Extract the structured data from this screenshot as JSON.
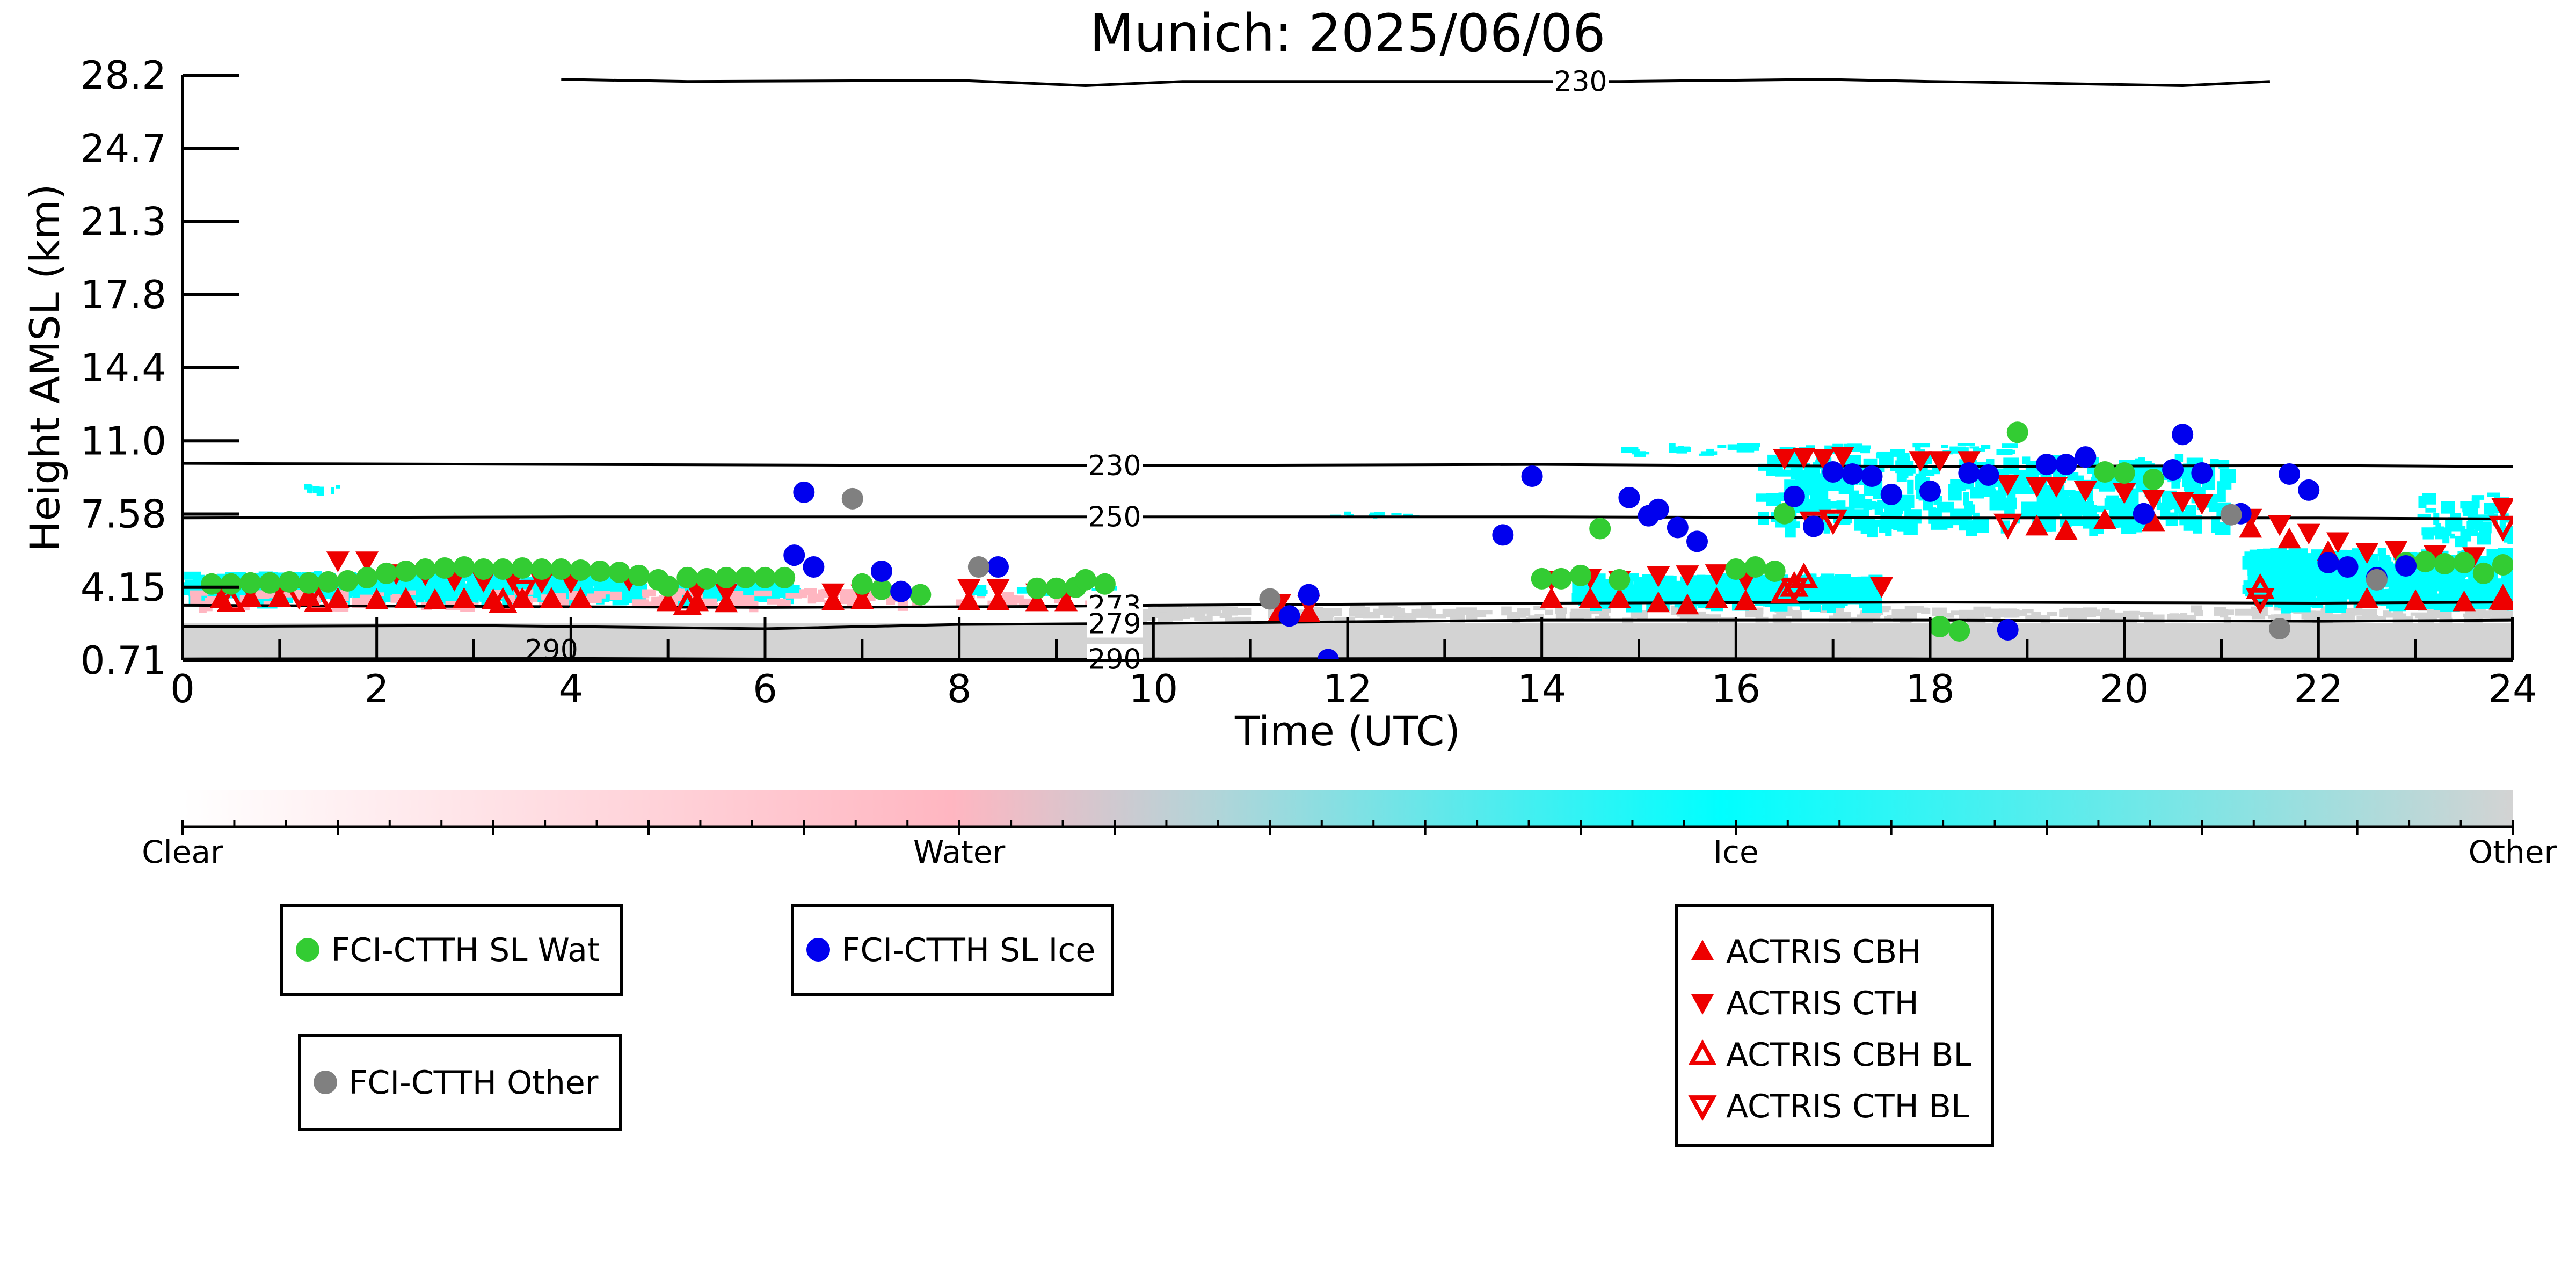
{
  "chart_data": {
    "type": "scatter",
    "title": "Munich: 2025/06/06",
    "xlabel": "Time (UTC)",
    "ylabel": "Height AMSL (km)",
    "xlim": [
      0,
      24
    ],
    "x_ticks": [
      "0",
      "2",
      "4",
      "6",
      "8",
      "10",
      "12",
      "14",
      "16",
      "18",
      "20",
      "22",
      "24"
    ],
    "y_ticks": [
      "0.71",
      "4.15",
      "7.58",
      "11.0",
      "14.4",
      "17.8",
      "21.3",
      "24.7",
      "28.2"
    ],
    "y_scale": "categorical-equal-spacing",
    "grid": false,
    "background_field": "cloud phase (colorbar)",
    "colors": {
      "water_point": "#33cc33",
      "ice_point": "#0000ee",
      "other_point": "#808080",
      "actris": "#ee0000",
      "ice_field": "#00ffff",
      "water_field": "#ffb6c1",
      "other_field": "#d3d3d3"
    },
    "contours": [
      {
        "label": "230",
        "label_x": 9.6,
        "points": [
          [
            0,
            9.95
          ],
          [
            4,
            9.9
          ],
          [
            8,
            9.85
          ],
          [
            10,
            9.85
          ],
          [
            14,
            9.9
          ],
          [
            18,
            9.8
          ],
          [
            22,
            9.85
          ],
          [
            24,
            9.8
          ]
        ]
      },
      {
        "label": "250",
        "label_x": 9.6,
        "points": [
          [
            0,
            7.4
          ],
          [
            4,
            7.45
          ],
          [
            8,
            7.45
          ],
          [
            10,
            7.45
          ],
          [
            14,
            7.45
          ],
          [
            18,
            7.4
          ],
          [
            22,
            7.4
          ],
          [
            24,
            7.35
          ]
        ]
      },
      {
        "label": "273",
        "label_x": 9.6,
        "points": [
          [
            0,
            3.3
          ],
          [
            3,
            3.25
          ],
          [
            6,
            3.2
          ],
          [
            9,
            3.25
          ],
          [
            10,
            3.3
          ],
          [
            14,
            3.4
          ],
          [
            18,
            3.45
          ],
          [
            22,
            3.4
          ],
          [
            24,
            3.45
          ]
        ]
      },
      {
        "label": "279",
        "label_x": 9.6,
        "points": [
          [
            0,
            2.3
          ],
          [
            3,
            2.35
          ],
          [
            6,
            2.2
          ],
          [
            8,
            2.4
          ],
          [
            10,
            2.45
          ],
          [
            14,
            2.6
          ],
          [
            18,
            2.6
          ],
          [
            22,
            2.55
          ],
          [
            24,
            2.6
          ]
        ]
      },
      {
        "label": "290",
        "label_x": 9.6,
        "points": [
          [
            0,
            0.78
          ],
          [
            4,
            0.8
          ],
          [
            8,
            0.75
          ],
          [
            10,
            0.78
          ],
          [
            14,
            0.8
          ],
          [
            18,
            0.78
          ],
          [
            24,
            0.78
          ]
        ]
      },
      {
        "label": "230",
        "label_x": 14.4,
        "points": [
          [
            3.9,
            28.0
          ],
          [
            5.2,
            27.9
          ],
          [
            8,
            27.95
          ],
          [
            9.3,
            27.7
          ],
          [
            10.3,
            27.9
          ],
          [
            14.8,
            27.9
          ],
          [
            16.9,
            28.0
          ],
          [
            18,
            27.9
          ],
          [
            18.7,
            27.85
          ],
          [
            20.6,
            27.7
          ],
          [
            21.5,
            27.9
          ]
        ]
      }
    ],
    "contour_labels_misc": [
      "290"
    ],
    "series": [
      {
        "name": "FCI-CTTH SL Wat",
        "marker": "circle",
        "color": "#33cc33",
        "points": [
          [
            0.3,
            4.3
          ],
          [
            0.5,
            4.3
          ],
          [
            0.7,
            4.35
          ],
          [
            0.9,
            4.35
          ],
          [
            1.1,
            4.4
          ],
          [
            1.3,
            4.35
          ],
          [
            1.5,
            4.4
          ],
          [
            1.7,
            4.45
          ],
          [
            1.9,
            4.6
          ],
          [
            2.1,
            4.8
          ],
          [
            2.3,
            4.9
          ],
          [
            2.5,
            5.0
          ],
          [
            2.7,
            5.05
          ],
          [
            2.9,
            5.1
          ],
          [
            3.1,
            5.0
          ],
          [
            3.3,
            5.0
          ],
          [
            3.5,
            5.05
          ],
          [
            3.7,
            5.0
          ],
          [
            3.9,
            5.0
          ],
          [
            4.1,
            4.95
          ],
          [
            4.3,
            4.9
          ],
          [
            4.5,
            4.85
          ],
          [
            4.7,
            4.7
          ],
          [
            4.9,
            4.5
          ],
          [
            5.0,
            4.2
          ],
          [
            5.2,
            4.6
          ],
          [
            5.4,
            4.55
          ],
          [
            5.6,
            4.6
          ],
          [
            5.8,
            4.6
          ],
          [
            6.0,
            4.6
          ],
          [
            6.2,
            4.6
          ],
          [
            7.0,
            4.3
          ],
          [
            7.2,
            4.05
          ],
          [
            7.6,
            3.8
          ],
          [
            8.8,
            4.1
          ],
          [
            9.0,
            4.1
          ],
          [
            9.2,
            4.15
          ],
          [
            9.3,
            4.5
          ],
          [
            9.5,
            4.3
          ],
          [
            14.0,
            4.55
          ],
          [
            14.2,
            4.55
          ],
          [
            14.4,
            4.7
          ],
          [
            14.6,
            6.9
          ],
          [
            14.8,
            4.5
          ],
          [
            16.0,
            5.0
          ],
          [
            16.2,
            5.1
          ],
          [
            16.4,
            4.9
          ],
          [
            16.5,
            7.6
          ],
          [
            18.1,
            2.3
          ],
          [
            18.3,
            2.1
          ],
          [
            18.9,
            11.4
          ],
          [
            19.8,
            9.55
          ],
          [
            20.0,
            9.5
          ],
          [
            20.3,
            9.2
          ],
          [
            22.9,
            5.3
          ],
          [
            23.1,
            5.35
          ],
          [
            23.3,
            5.25
          ],
          [
            23.5,
            5.3
          ],
          [
            23.7,
            4.8
          ],
          [
            23.9,
            5.2
          ]
        ]
      },
      {
        "name": "FCI-CTTH SL Ice",
        "marker": "circle",
        "color": "#0000ee",
        "points": [
          [
            6.3,
            5.65
          ],
          [
            6.4,
            8.6
          ],
          [
            6.5,
            5.1
          ],
          [
            7.2,
            4.9
          ],
          [
            7.4,
            3.95
          ],
          [
            8.4,
            5.1
          ],
          [
            11.4,
            2.8
          ],
          [
            11.6,
            3.8
          ],
          [
            11.8,
            0.75
          ],
          [
            13.6,
            6.6
          ],
          [
            13.9,
            9.35
          ],
          [
            14.9,
            8.35
          ],
          [
            15.1,
            7.5
          ],
          [
            15.2,
            7.8
          ],
          [
            15.4,
            6.95
          ],
          [
            15.6,
            6.3
          ],
          [
            16.6,
            8.4
          ],
          [
            16.8,
            7.0
          ],
          [
            17.0,
            9.55
          ],
          [
            17.2,
            9.45
          ],
          [
            17.4,
            9.35
          ],
          [
            17.6,
            8.5
          ],
          [
            18.0,
            8.65
          ],
          [
            18.4,
            9.5
          ],
          [
            18.6,
            9.4
          ],
          [
            18.8,
            2.15
          ],
          [
            19.2,
            9.9
          ],
          [
            19.4,
            9.9
          ],
          [
            19.6,
            10.25
          ],
          [
            20.2,
            7.6
          ],
          [
            20.5,
            9.65
          ],
          [
            20.6,
            11.3
          ],
          [
            20.8,
            9.5
          ],
          [
            21.2,
            7.6
          ],
          [
            21.7,
            9.45
          ],
          [
            21.9,
            8.7
          ],
          [
            22.1,
            5.3
          ],
          [
            22.3,
            5.1
          ],
          [
            22.6,
            4.6
          ],
          [
            22.9,
            5.15
          ]
        ]
      },
      {
        "name": "FCI-CTTH Other",
        "marker": "circle",
        "color": "#808080",
        "points": [
          [
            6.9,
            8.3
          ],
          [
            8.2,
            5.1
          ],
          [
            11.2,
            3.6
          ],
          [
            21.1,
            7.55
          ],
          [
            21.6,
            2.2
          ],
          [
            22.6,
            4.5
          ]
        ]
      },
      {
        "name": "ACTRIS CBH",
        "marker": "triangle-up",
        "color": "#ee0000",
        "filled": true,
        "points": [
          [
            0.4,
            3.6
          ],
          [
            0.7,
            3.65
          ],
          [
            1.0,
            3.65
          ],
          [
            1.3,
            3.7
          ],
          [
            1.6,
            3.6
          ],
          [
            2.0,
            3.55
          ],
          [
            2.3,
            3.6
          ],
          [
            2.6,
            3.55
          ],
          [
            2.9,
            3.6
          ],
          [
            3.2,
            3.55
          ],
          [
            3.5,
            3.6
          ],
          [
            3.8,
            3.6
          ],
          [
            4.1,
            3.6
          ],
          [
            5.0,
            3.45
          ],
          [
            5.3,
            3.45
          ],
          [
            5.6,
            3.4
          ],
          [
            6.7,
            3.5
          ],
          [
            7.0,
            3.55
          ],
          [
            8.1,
            3.5
          ],
          [
            8.4,
            3.5
          ],
          [
            8.8,
            3.45
          ],
          [
            9.1,
            3.45
          ],
          [
            11.3,
            3.0
          ],
          [
            11.6,
            2.95
          ],
          [
            14.1,
            3.6
          ],
          [
            14.5,
            3.6
          ],
          [
            14.8,
            3.6
          ],
          [
            15.2,
            3.4
          ],
          [
            15.5,
            3.3
          ],
          [
            15.8,
            3.6
          ],
          [
            16.1,
            3.5
          ],
          [
            19.1,
            7.0
          ],
          [
            19.4,
            6.8
          ],
          [
            19.8,
            7.3
          ],
          [
            20.3,
            7.2
          ],
          [
            21.3,
            6.9
          ],
          [
            21.7,
            6.4
          ],
          [
            22.1,
            5.8
          ],
          [
            22.5,
            3.6
          ],
          [
            23.0,
            3.5
          ],
          [
            23.5,
            3.45
          ],
          [
            23.9,
            3.5
          ]
        ]
      },
      {
        "name": "ACTRIS CTH",
        "marker": "triangle-down",
        "color": "#ee0000",
        "filled": true,
        "points": [
          [
            0.4,
            4.0
          ],
          [
            0.7,
            4.0
          ],
          [
            1.0,
            4.1
          ],
          [
            1.3,
            4.1
          ],
          [
            1.6,
            5.4
          ],
          [
            1.9,
            5.4
          ],
          [
            2.2,
            4.8
          ],
          [
            2.5,
            4.75
          ],
          [
            2.8,
            4.5
          ],
          [
            3.1,
            4.45
          ],
          [
            3.4,
            4.5
          ],
          [
            3.7,
            4.4
          ],
          [
            4.0,
            4.4
          ],
          [
            4.6,
            4.5
          ],
          [
            5.0,
            4.0
          ],
          [
            5.3,
            3.95
          ],
          [
            5.6,
            3.9
          ],
          [
            6.7,
            3.9
          ],
          [
            7.0,
            3.85
          ],
          [
            8.1,
            4.1
          ],
          [
            8.4,
            4.1
          ],
          [
            8.8,
            3.9
          ],
          [
            9.1,
            3.8
          ],
          [
            11.3,
            3.4
          ],
          [
            11.6,
            3.35
          ],
          [
            14.1,
            4.5
          ],
          [
            14.5,
            4.6
          ],
          [
            14.8,
            4.5
          ],
          [
            15.2,
            4.7
          ],
          [
            15.5,
            4.75
          ],
          [
            15.8,
            4.8
          ],
          [
            16.1,
            4.5
          ],
          [
            16.5,
            10.2
          ],
          [
            16.7,
            10.25
          ],
          [
            16.9,
            10.2
          ],
          [
            17.1,
            10.3
          ],
          [
            17.5,
            4.2
          ],
          [
            17.9,
            10.1
          ],
          [
            18.1,
            10.1
          ],
          [
            18.4,
            10.1
          ],
          [
            18.8,
            9.0
          ],
          [
            19.1,
            8.9
          ],
          [
            19.3,
            8.9
          ],
          [
            19.6,
            8.7
          ],
          [
            20.0,
            8.6
          ],
          [
            20.3,
            8.3
          ],
          [
            20.6,
            8.2
          ],
          [
            20.8,
            8.1
          ],
          [
            21.3,
            7.4
          ],
          [
            21.6,
            7.1
          ],
          [
            21.9,
            6.7
          ],
          [
            22.2,
            6.3
          ],
          [
            22.5,
            5.8
          ],
          [
            22.8,
            5.9
          ],
          [
            23.2,
            5.7
          ],
          [
            23.6,
            5.6
          ],
          [
            23.9,
            7.9
          ]
        ]
      },
      {
        "name": "ACTRIS CBH BL",
        "marker": "triangle-up",
        "color": "#ee0000",
        "filled": false,
        "points": [
          [
            0.5,
            3.5
          ],
          [
            1.4,
            3.5
          ],
          [
            3.3,
            3.45
          ],
          [
            5.2,
            3.35
          ],
          [
            16.5,
            3.9
          ],
          [
            16.6,
            4.2
          ],
          [
            16.7,
            4.6
          ],
          [
            21.4,
            4.1
          ],
          [
            23.9,
            3.6
          ]
        ]
      },
      {
        "name": "ACTRIS CTH BL",
        "marker": "triangle-down",
        "color": "#ee0000",
        "filled": false,
        "points": [
          [
            1.2,
            3.8
          ],
          [
            3.5,
            4.0
          ],
          [
            16.6,
            4.1
          ],
          [
            16.8,
            7.2
          ],
          [
            17.0,
            7.3
          ],
          [
            18.8,
            7.1
          ],
          [
            21.4,
            3.6
          ],
          [
            23.9,
            7.0
          ]
        ]
      }
    ],
    "colorbar": {
      "labels": [
        "Clear",
        "Water",
        "Ice",
        "Other"
      ],
      "stops": [
        {
          "position": 0.0,
          "color": "#ffffff"
        },
        {
          "position": 0.33,
          "color": "#ffb6c1"
        },
        {
          "position": 0.44,
          "color": "#b4d4d8"
        },
        {
          "position": 0.66,
          "color": "#00ffff"
        },
        {
          "position": 1.0,
          "color": "#d3d3d3"
        }
      ]
    },
    "legend": {
      "placement": "below-plot"
    }
  }
}
